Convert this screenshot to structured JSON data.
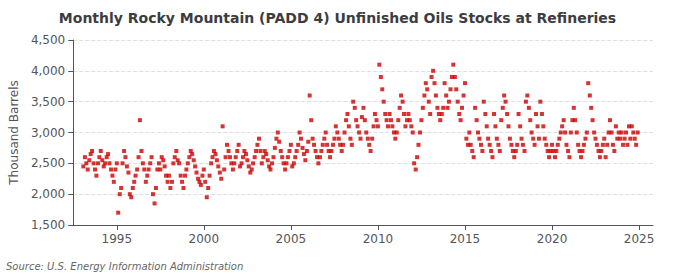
{
  "chart_data": {
    "type": "scatter",
    "title": "Monthly Rocky Mountain (PADD 4) Unfinished Oils Stocks at Refineries",
    "ylabel": "Thousand Barrels",
    "annotations": [
      "Source: U.S. Energy Information Administration"
    ],
    "color": "#cc0000",
    "marker": "square",
    "grid": true,
    "xlim": [
      1992.5,
      2025.8
    ],
    "xticks": [
      1995,
      2000,
      2005,
      2010,
      2015,
      2020,
      2025
    ],
    "ylim": [
      1500,
      4500
    ],
    "yticks": [
      {
        "value": 1500,
        "label": "1,500"
      },
      {
        "value": 2000,
        "label": "2,000"
      },
      {
        "value": 2500,
        "label": "2,500"
      },
      {
        "value": 3000,
        "label": "3,000"
      },
      {
        "value": 3500,
        "label": "3,500"
      },
      {
        "value": 4000,
        "label": "4,000"
      },
      {
        "value": 4500,
        "label": "4,500"
      }
    ],
    "x": [
      1993.08,
      1993.17,
      1993.25,
      1993.33,
      1993.42,
      1993.5,
      1993.58,
      1993.67,
      1993.75,
      1993.83,
      1993.92,
      1994.0,
      1994.08,
      1994.17,
      1994.25,
      1994.33,
      1994.42,
      1994.5,
      1994.58,
      1994.67,
      1994.75,
      1994.83,
      1994.92,
      1995.0,
      1995.08,
      1995.17,
      1995.25,
      1995.33,
      1995.42,
      1995.5,
      1995.58,
      1995.67,
      1995.75,
      1995.83,
      1995.92,
      1996.0,
      1996.08,
      1996.17,
      1996.25,
      1996.33,
      1996.42,
      1996.5,
      1996.58,
      1996.67,
      1996.75,
      1996.83,
      1996.92,
      1997.0,
      1997.08,
      1997.17,
      1997.25,
      1997.33,
      1997.42,
      1997.5,
      1997.58,
      1997.67,
      1997.75,
      1997.83,
      1997.92,
      1998.0,
      1998.08,
      1998.17,
      1998.25,
      1998.33,
      1998.42,
      1998.5,
      1998.58,
      1998.67,
      1998.75,
      1998.83,
      1998.92,
      1999.0,
      1999.08,
      1999.17,
      1999.25,
      1999.33,
      1999.42,
      1999.5,
      1999.58,
      1999.67,
      1999.75,
      1999.83,
      1999.92,
      2000.0,
      2000.08,
      2000.17,
      2000.25,
      2000.33,
      2000.42,
      2000.5,
      2000.58,
      2000.67,
      2000.75,
      2000.83,
      2000.92,
      2001.0,
      2001.08,
      2001.17,
      2001.25,
      2001.33,
      2001.42,
      2001.5,
      2001.58,
      2001.67,
      2001.75,
      2001.83,
      2001.92,
      2002.0,
      2002.08,
      2002.17,
      2002.25,
      2002.33,
      2002.42,
      2002.5,
      2002.58,
      2002.67,
      2002.75,
      2002.83,
      2002.92,
      2003.0,
      2003.08,
      2003.17,
      2003.25,
      2003.33,
      2003.42,
      2003.5,
      2003.58,
      2003.67,
      2003.75,
      2003.83,
      2003.92,
      2004.0,
      2004.08,
      2004.17,
      2004.25,
      2004.33,
      2004.42,
      2004.5,
      2004.58,
      2004.67,
      2004.75,
      2004.83,
      2004.92,
      2005.0,
      2005.08,
      2005.17,
      2005.25,
      2005.33,
      2005.42,
      2005.5,
      2005.58,
      2005.67,
      2005.75,
      2005.83,
      2005.92,
      2006.0,
      2006.08,
      2006.17,
      2006.25,
      2006.33,
      2006.42,
      2006.5,
      2006.58,
      2006.67,
      2006.75,
      2006.83,
      2006.92,
      2007.0,
      2007.08,
      2007.17,
      2007.25,
      2007.33,
      2007.42,
      2007.5,
      2007.58,
      2007.67,
      2007.75,
      2007.83,
      2007.92,
      2008.0,
      2008.08,
      2008.17,
      2008.25,
      2008.33,
      2008.42,
      2008.5,
      2008.58,
      2008.67,
      2008.75,
      2008.83,
      2008.92,
      2009.0,
      2009.08,
      2009.17,
      2009.25,
      2009.33,
      2009.42,
      2009.5,
      2009.58,
      2009.67,
      2009.75,
      2009.83,
      2009.92,
      2010.0,
      2010.08,
      2010.17,
      2010.25,
      2010.33,
      2010.42,
      2010.5,
      2010.58,
      2010.67,
      2010.75,
      2010.83,
      2010.92,
      2011.0,
      2011.08,
      2011.17,
      2011.25,
      2011.33,
      2011.42,
      2011.5,
      2011.58,
      2011.67,
      2011.75,
      2011.83,
      2011.92,
      2012.0,
      2012.08,
      2012.17,
      2012.25,
      2012.33,
      2012.42,
      2012.5,
      2012.58,
      2012.67,
      2012.75,
      2012.83,
      2012.92,
      2013.0,
      2013.08,
      2013.17,
      2013.25,
      2013.33,
      2013.42,
      2013.5,
      2013.58,
      2013.67,
      2013.75,
      2013.83,
      2013.92,
      2014.0,
      2014.08,
      2014.17,
      2014.25,
      2014.33,
      2014.42,
      2014.5,
      2014.58,
      2014.67,
      2014.75,
      2014.83,
      2014.92,
      2015.0,
      2015.08,
      2015.17,
      2015.25,
      2015.33,
      2015.42,
      2015.5,
      2015.58,
      2015.67,
      2015.75,
      2015.83,
      2015.92,
      2016.0,
      2016.08,
      2016.17,
      2016.25,
      2016.33,
      2016.42,
      2016.5,
      2016.58,
      2016.67,
      2016.75,
      2016.83,
      2016.92,
      2017.0,
      2017.08,
      2017.17,
      2017.25,
      2017.33,
      2017.42,
      2017.5,
      2017.58,
      2017.67,
      2017.75,
      2017.83,
      2017.92,
      2018.0,
      2018.08,
      2018.17,
      2018.25,
      2018.33,
      2018.42,
      2018.5,
      2018.58,
      2018.67,
      2018.75,
      2018.83,
      2018.92,
      2019.0,
      2019.08,
      2019.17,
      2019.25,
      2019.33,
      2019.42,
      2019.5,
      2019.58,
      2019.67,
      2019.75,
      2019.83,
      2019.92,
      2020.0,
      2020.08,
      2020.17,
      2020.25,
      2020.33,
      2020.42,
      2020.5,
      2020.58,
      2020.67,
      2020.75,
      2020.83,
      2020.92,
      2021.0,
      2021.08,
      2021.17,
      2021.25,
      2021.33,
      2021.42,
      2021.5,
      2021.58,
      2021.67,
      2021.75,
      2021.83,
      2021.92,
      2022.0,
      2022.08,
      2022.17,
      2022.25,
      2022.33,
      2022.42,
      2022.5,
      2022.58,
      2022.67,
      2022.75,
      2022.83,
      2022.92,
      2023.0,
      2023.08,
      2023.17,
      2023.25,
      2023.33,
      2023.42,
      2023.5,
      2023.58,
      2023.67,
      2023.75,
      2023.83,
      2023.92,
      2024.0,
      2024.08,
      2024.17,
      2024.25,
      2024.33,
      2024.42,
      2024.5,
      2024.58,
      2024.67,
      2024.75,
      2024.83,
      2024.92
    ],
    "values": [
      2450,
      2600,
      2500,
      2400,
      2550,
      2650,
      2700,
      2500,
      2400,
      2300,
      2500,
      2600,
      2700,
      2550,
      2450,
      2500,
      2600,
      2650,
      2500,
      2400,
      2300,
      2200,
      2400,
      2500,
      1700,
      2000,
      2100,
      2500,
      2700,
      2600,
      2450,
      2350,
      2000,
      1950,
      2100,
      2200,
      2300,
      2400,
      2600,
      3200,
      2700,
      2500,
      2400,
      2200,
      2300,
      2400,
      2500,
      2600,
      2000,
      1850,
      2100,
      2400,
      2500,
      2400,
      2600,
      2550,
      2450,
      2300,
      2200,
      2300,
      2100,
      2200,
      2500,
      2600,
      2700,
      2550,
      2500,
      2300,
      2200,
      2100,
      2300,
      2400,
      2500,
      2600,
      2700,
      2650,
      2550,
      2450,
      2350,
      2250,
      2200,
      2150,
      2300,
      2400,
      2200,
      1950,
      2100,
      2300,
      2500,
      2600,
      2700,
      2650,
      2550,
      2450,
      2350,
      2250,
      3100,
      2400,
      2600,
      2800,
      2700,
      2600,
      2500,
      2400,
      2500,
      2600,
      2700,
      2800,
      2450,
      2500,
      2600,
      2700,
      2650,
      2550,
      2450,
      2350,
      2400,
      2500,
      2600,
      2700,
      2800,
      2900,
      2700,
      2500,
      2600,
      2700,
      2650,
      2550,
      2450,
      2400,
      2500,
      2600,
      2750,
      2900,
      3000,
      2850,
      2700,
      2600,
      2500,
      2400,
      2500,
      2600,
      2700,
      2800,
      2450,
      2500,
      2600,
      2700,
      2800,
      3000,
      2900,
      2750,
      2650,
      2550,
      2700,
      2850,
      3600,
      3200,
      2900,
      2800,
      2700,
      2600,
      2500,
      2600,
      2700,
      2800,
      2900,
      3000,
      2800,
      2700,
      2600,
      2700,
      2800,
      2900,
      3100,
      3000,
      2900,
      2800,
      2700,
      2800,
      3000,
      3200,
      3300,
      3100,
      2900,
      2800,
      3500,
      3400,
      3200,
      3100,
      3000,
      2900,
      3250,
      3400,
      3200,
      3000,
      2900,
      2800,
      2700,
      2900,
      3100,
      3300,
      3200,
      3100,
      4100,
      3900,
      3700,
      3500,
      3300,
      3200,
      3100,
      3300,
      3200,
      3100,
      3000,
      2900,
      3000,
      3200,
      3400,
      3600,
      3500,
      3300,
      3100,
      3200,
      3300,
      3200,
      3100,
      3000,
      2500,
      2400,
      2600,
      2800,
      3000,
      3200,
      3400,
      3600,
      3800,
      3700,
      3500,
      3300,
      3900,
      4000,
      3800,
      3600,
      3400,
      3300,
      3200,
      3300,
      3400,
      3800,
      3600,
      3400,
      3500,
      3700,
      3900,
      4100,
      3900,
      3700,
      3500,
      3300,
      3200,
      3400,
      3600,
      3800,
      2900,
      2800,
      3000,
      2800,
      2700,
      2600,
      3400,
      3200,
      3000,
      2900,
      2800,
      2700,
      3500,
      3300,
      3100,
      2900,
      2800,
      2700,
      2600,
      3300,
      3100,
      2900,
      2800,
      2700,
      3200,
      3400,
      3600,
      3500,
      3300,
      3100,
      2900,
      2800,
      2700,
      2600,
      2700,
      2800,
      3300,
      3100,
      2900,
      2800,
      2700,
      3500,
      3600,
      3400,
      3200,
      3000,
      2900,
      2800,
      3300,
      3100,
      2900,
      3500,
      3300,
      3100,
      2900,
      2800,
      2700,
      2600,
      2700,
      2800,
      2700,
      2600,
      2700,
      2800,
      2900,
      3000,
      3100,
      3200,
      3000,
      2800,
      2700,
      2600,
      3000,
      3200,
      3400,
      3200,
      3000,
      2800,
      2700,
      2600,
      2700,
      2800,
      2900,
      3000,
      3800,
      3600,
      3400,
      3200,
      3000,
      2900,
      2800,
      2700,
      2600,
      2700,
      2800,
      2900,
      2600,
      2800,
      3000,
      3200,
      3000,
      2800,
      2700,
      3100,
      2900,
      3000,
      2900,
      3000,
      2800,
      2900,
      3000,
      2800,
      3100,
      2900,
      3100,
      3000,
      2900,
      2800,
      3000
    ]
  }
}
